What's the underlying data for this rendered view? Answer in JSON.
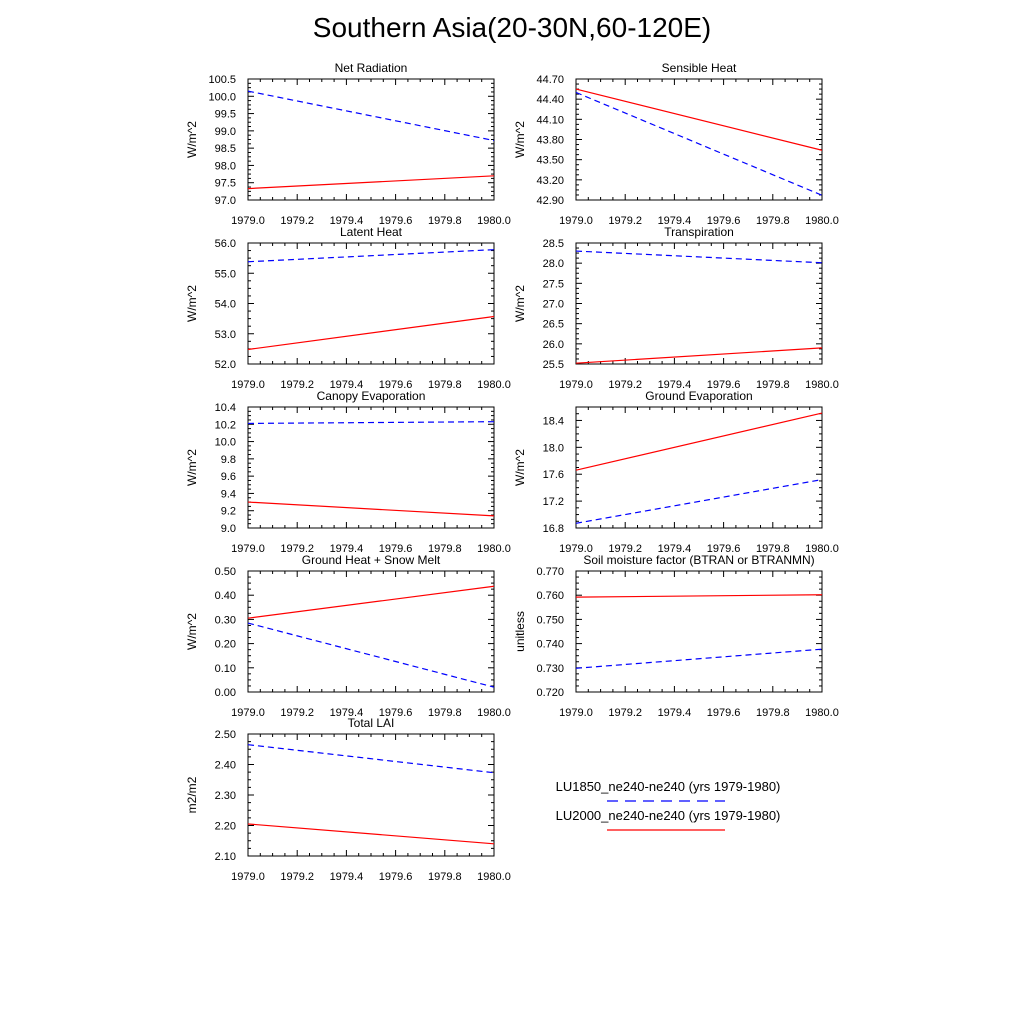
{
  "figure_title": "Southern Asia(20-30N,60-120E)",
  "colors": {
    "series1": "#0000ff",
    "series2": "#ff0000",
    "axis": "#000000"
  },
  "legend": {
    "entries": [
      {
        "label": "LU1850_ne240-ne240 (yrs 1979-1980)",
        "color": "#0000ff",
        "dash": "dashed"
      },
      {
        "label": "LU2000_ne240-ne240 (yrs 1979-1980)",
        "color": "#ff0000",
        "dash": "solid"
      }
    ]
  },
  "chart_data": [
    {
      "type": "line",
      "title": "Net Radiation",
      "ylabel": "W/m^2",
      "x": [
        1979.0,
        1980.0
      ],
      "xlim": [
        1979.0,
        1980.0
      ],
      "xticks": [
        "1979.0",
        "1979.2",
        "1979.4",
        "1979.6",
        "1979.8",
        "1980.0"
      ],
      "ylim": [
        97.0,
        100.5
      ],
      "yticks": [
        "97.0",
        "97.5",
        "98.0",
        "98.5",
        "99.0",
        "99.5",
        "100.0",
        "100.5"
      ],
      "series": [
        {
          "values": [
            100.15,
            98.72
          ],
          "style": "dashed",
          "color": "#0000ff"
        },
        {
          "values": [
            97.33,
            97.7
          ],
          "style": "solid",
          "color": "#ff0000"
        }
      ]
    },
    {
      "type": "line",
      "title": "Sensible Heat",
      "ylabel": "W/m^2",
      "x": [
        1979.0,
        1980.0
      ],
      "xlim": [
        1979.0,
        1980.0
      ],
      "xticks": [
        "1979.0",
        "1979.2",
        "1979.4",
        "1979.6",
        "1979.8",
        "1980.0"
      ],
      "ylim": [
        42.9,
        44.7
      ],
      "yticks": [
        "42.90",
        "43.20",
        "43.50",
        "43.80",
        "44.10",
        "44.40",
        "44.70"
      ],
      "series": [
        {
          "values": [
            44.5,
            42.97
          ],
          "style": "dashed",
          "color": "#0000ff"
        },
        {
          "values": [
            44.55,
            43.64
          ],
          "style": "solid",
          "color": "#ff0000"
        }
      ]
    },
    {
      "type": "line",
      "title": "Latent Heat",
      "ylabel": "W/m^2",
      "x": [
        1979.0,
        1980.0
      ],
      "xlim": [
        1979.0,
        1980.0
      ],
      "xticks": [
        "1979.0",
        "1979.2",
        "1979.4",
        "1979.6",
        "1979.8",
        "1980.0"
      ],
      "ylim": [
        52.0,
        56.0
      ],
      "yticks": [
        "52.0",
        "53.0",
        "54.0",
        "55.0",
        "56.0"
      ],
      "series": [
        {
          "values": [
            55.38,
            55.78
          ],
          "style": "dashed",
          "color": "#0000ff"
        },
        {
          "values": [
            52.48,
            53.57
          ],
          "style": "solid",
          "color": "#ff0000"
        }
      ]
    },
    {
      "type": "line",
      "title": "Transpiration",
      "ylabel": "W/m^2",
      "x": [
        1979.0,
        1980.0
      ],
      "xlim": [
        1979.0,
        1980.0
      ],
      "xticks": [
        "1979.0",
        "1979.2",
        "1979.4",
        "1979.6",
        "1979.8",
        "1980.0"
      ],
      "ylim": [
        25.5,
        28.5
      ],
      "yticks": [
        "25.5",
        "26.0",
        "26.5",
        "27.0",
        "27.5",
        "28.0",
        "28.5"
      ],
      "series": [
        {
          "values": [
            28.3,
            28.01
          ],
          "style": "dashed",
          "color": "#0000ff"
        },
        {
          "values": [
            25.52,
            25.9
          ],
          "style": "solid",
          "color": "#ff0000"
        }
      ]
    },
    {
      "type": "line",
      "title": "Canopy Evaporation",
      "ylabel": "W/m^2",
      "x": [
        1979.0,
        1980.0
      ],
      "xlim": [
        1979.0,
        1980.0
      ],
      "xticks": [
        "1979.0",
        "1979.2",
        "1979.4",
        "1979.6",
        "1979.8",
        "1980.0"
      ],
      "ylim": [
        9.0,
        10.4
      ],
      "yticks": [
        "9.0",
        "9.2",
        "9.4",
        "9.6",
        "9.8",
        "10.0",
        "10.2",
        "10.4"
      ],
      "series": [
        {
          "values": [
            10.21,
            10.23
          ],
          "style": "dashed",
          "color": "#0000ff"
        },
        {
          "values": [
            9.3,
            9.14
          ],
          "style": "solid",
          "color": "#ff0000"
        }
      ]
    },
    {
      "type": "line",
      "title": "Ground Evaporation",
      "ylabel": "W/m^2",
      "x": [
        1979.0,
        1980.0
      ],
      "xlim": [
        1979.0,
        1980.0
      ],
      "xticks": [
        "1979.0",
        "1979.2",
        "1979.4",
        "1979.6",
        "1979.8",
        "1980.0"
      ],
      "ylim": [
        16.8,
        18.6
      ],
      "yticks": [
        "16.8",
        "17.2",
        "17.6",
        "18.0",
        "18.4"
      ],
      "series": [
        {
          "values": [
            16.87,
            17.52
          ],
          "style": "dashed",
          "color": "#0000ff"
        },
        {
          "values": [
            17.66,
            18.51
          ],
          "style": "solid",
          "color": "#ff0000"
        }
      ]
    },
    {
      "type": "line",
      "title": "Ground Heat + Snow Melt",
      "ylabel": "W/m^2",
      "x": [
        1979.0,
        1980.0
      ],
      "xlim": [
        1979.0,
        1980.0
      ],
      "xticks": [
        "1979.0",
        "1979.2",
        "1979.4",
        "1979.6",
        "1979.8",
        "1980.0"
      ],
      "ylim": [
        0.0,
        0.5
      ],
      "yticks": [
        "0.00",
        "0.10",
        "0.20",
        "0.30",
        "0.40",
        "0.50"
      ],
      "series": [
        {
          "values": [
            0.285,
            0.02
          ],
          "style": "dashed",
          "color": "#0000ff"
        },
        {
          "values": [
            0.305,
            0.437
          ],
          "style": "solid",
          "color": "#ff0000"
        }
      ]
    },
    {
      "type": "line",
      "title": "Soil moisture factor (BTRAN or BTRANMN)",
      "ylabel": "unitless",
      "x": [
        1979.0,
        1980.0
      ],
      "xlim": [
        1979.0,
        1980.0
      ],
      "xticks": [
        "1979.0",
        "1979.2",
        "1979.4",
        "1979.6",
        "1979.8",
        "1980.0"
      ],
      "ylim": [
        0.72,
        0.77
      ],
      "yticks": [
        "0.720",
        "0.730",
        "0.740",
        "0.750",
        "0.760",
        "0.770"
      ],
      "series": [
        {
          "values": [
            0.7298,
            0.7377
          ],
          "style": "dashed",
          "color": "#0000ff"
        },
        {
          "values": [
            0.7592,
            0.7602
          ],
          "style": "solid",
          "color": "#ff0000"
        }
      ]
    },
    {
      "type": "line",
      "title": "Total LAI",
      "ylabel": "m2/m2",
      "x": [
        1979.0,
        1980.0
      ],
      "xlim": [
        1979.0,
        1980.0
      ],
      "xticks": [
        "1979.0",
        "1979.2",
        "1979.4",
        "1979.6",
        "1979.8",
        "1980.0"
      ],
      "ylim": [
        2.1,
        2.5
      ],
      "yticks": [
        "2.10",
        "2.20",
        "2.30",
        "2.40",
        "2.50"
      ],
      "series": [
        {
          "values": [
            2.465,
            2.373
          ],
          "style": "dashed",
          "color": "#0000ff"
        },
        {
          "values": [
            2.205,
            2.14
          ],
          "style": "solid",
          "color": "#ff0000"
        }
      ]
    }
  ]
}
